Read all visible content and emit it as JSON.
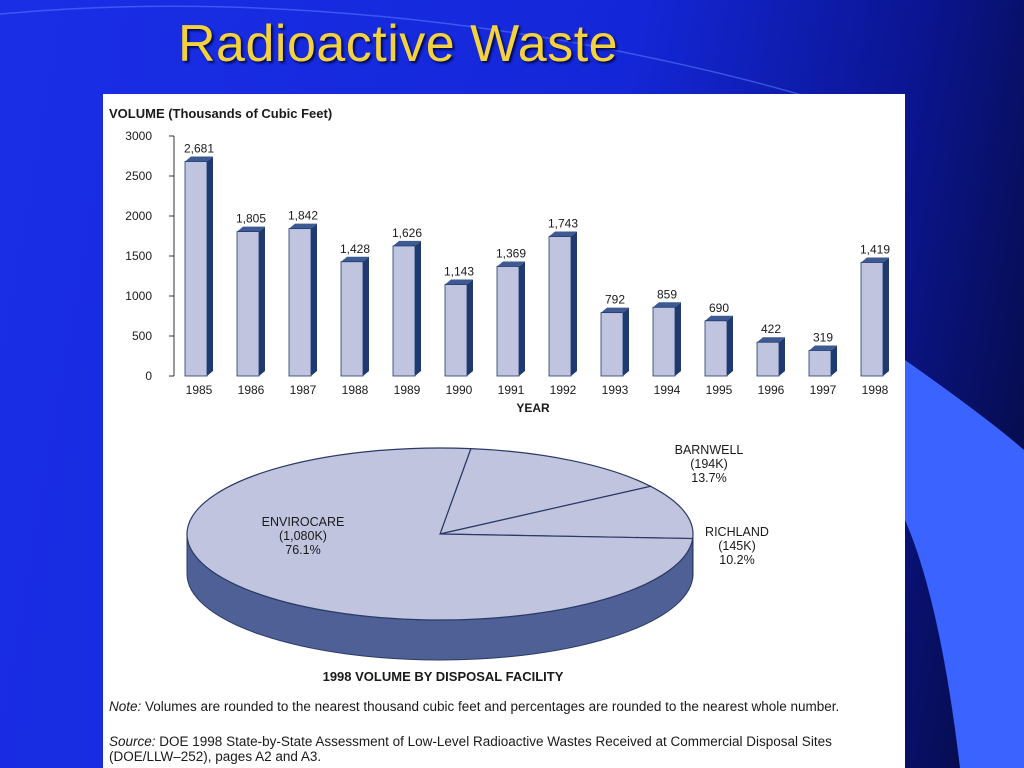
{
  "slide": {
    "title": "Radioactive Waste",
    "background_color": "#1a2ee6",
    "accent_color": "#3a63ff",
    "title_color": "#f4d23c"
  },
  "chart_data": [
    {
      "type": "bar",
      "title": "",
      "ylabel": "VOLUME (Thousands of Cubic Feet)",
      "xlabel": "YEAR",
      "categories": [
        "1985",
        "1986",
        "1987",
        "1988",
        "1989",
        "1990",
        "1991",
        "1992",
        "1993",
        "1994",
        "1995",
        "1996",
        "1997",
        "1998"
      ],
      "values": [
        2681,
        1805,
        1842,
        1428,
        1626,
        1143,
        1369,
        1743,
        792,
        859,
        690,
        422,
        319,
        1419
      ],
      "value_labels": [
        "2,681",
        "1,805",
        "1,842",
        "1,428",
        "1,626",
        "1,143",
        "1,369",
        "1,743",
        "792",
        "859",
        "690",
        "422",
        "319",
        "1,419"
      ],
      "ylim": [
        0,
        3000
      ],
      "yticks": [
        0,
        500,
        1000,
        1500,
        2000,
        2500,
        3000
      ],
      "grid": false,
      "bar_color": "#c0c4de",
      "bar_side_color": "#1e3a6e"
    },
    {
      "type": "pie",
      "title": "1998 VOLUME BY DISPOSAL FACILITY",
      "slices": [
        {
          "name": "ENVIROCARE",
          "amount": "(1,080K)",
          "percent": "76.1%",
          "value": 76.1
        },
        {
          "name": "BARNWELL",
          "amount": "(194K)",
          "percent": "13.7%",
          "value": 13.7
        },
        {
          "name": "RICHLAND",
          "amount": "(145K)",
          "percent": "10.2%",
          "value": 10.2
        }
      ],
      "top_color": "#c0c4de",
      "side_color": "#4f6096"
    }
  ],
  "notes": {
    "note_lead": "Note:",
    "note_text": " Volumes are rounded to the nearest thousand cubic feet and percentages are rounded to the nearest whole number.",
    "source_lead": "Source:",
    "source_text": " DOE 1998 State-by-State Assessment of Low-Level Radioactive Wastes Received at Commercial Disposal Sites (DOE/LLW–252), pages A2 and A3."
  }
}
